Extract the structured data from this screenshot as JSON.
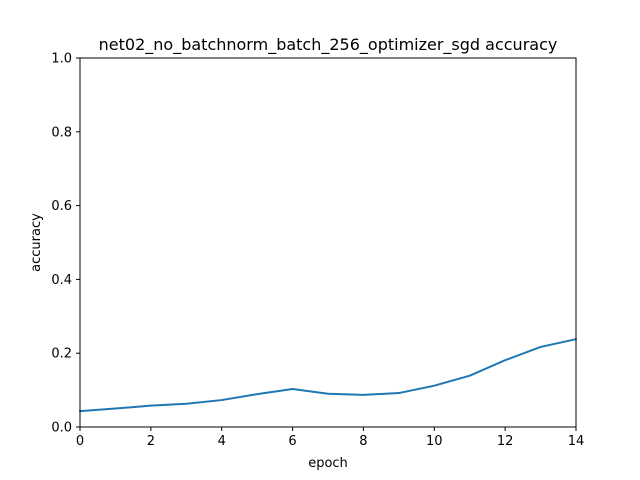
{
  "chart_data": {
    "type": "line",
    "title": "net02_no_batchnorm_batch_256_optimizer_sgd accuracy",
    "xlabel": "epoch",
    "ylabel": "accuracy",
    "xlim": [
      0,
      14
    ],
    "ylim": [
      0,
      1.0
    ],
    "xticks": [
      "0",
      "2",
      "4",
      "6",
      "8",
      "10",
      "12",
      "14"
    ],
    "xtick_values": [
      0,
      2,
      4,
      6,
      8,
      10,
      12,
      14
    ],
    "yticks": [
      "0.0",
      "0.2",
      "0.4",
      "0.6",
      "0.8",
      "1.0"
    ],
    "ytick_values": [
      0,
      0.2,
      0.4,
      0.6,
      0.8,
      1.0
    ],
    "grid": false,
    "series": [
      {
        "color": "#1f77b4",
        "x": [
          0,
          1,
          2,
          3,
          4,
          5,
          6,
          7,
          8,
          9,
          10,
          11,
          12,
          13,
          14
        ],
        "y": [
          0.043,
          0.05,
          0.058,
          0.063,
          0.073,
          0.089,
          0.103,
          0.09,
          0.087,
          0.092,
          0.112,
          0.139,
          0.181,
          0.217,
          0.238
        ]
      }
    ]
  }
}
